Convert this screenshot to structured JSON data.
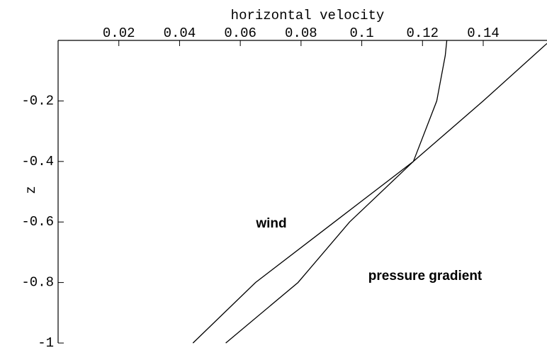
{
  "chart_data": {
    "type": "line",
    "title": "horizontal velocity",
    "y_label": "z",
    "xlim": [
      0,
      0.161
    ],
    "ylim": [
      -1,
      0
    ],
    "xticks": [
      0.02,
      0.04,
      0.06,
      0.08,
      0.1,
      0.12,
      0.14
    ],
    "yticks": [
      -0.2,
      -0.4,
      -0.6,
      -0.8,
      -1
    ],
    "series": [
      {
        "name": "wind",
        "color": "#000000",
        "x": [
          0.0444,
          0.065,
          0.091,
          0.117,
          0.14,
          0.161
        ],
        "values": [
          -1,
          -0.8,
          -0.6,
          -0.4,
          -0.2,
          -0.01
        ]
      },
      {
        "name": "pressure gradient",
        "color": "#000000",
        "x": [
          0.0552,
          0.079,
          0.096,
          0.117,
          0.1247,
          0.1275,
          0.128
        ],
        "values": [
          -1,
          -0.8,
          -0.6,
          -0.4,
          -0.2,
          -0.05,
          0
        ]
      }
    ]
  }
}
